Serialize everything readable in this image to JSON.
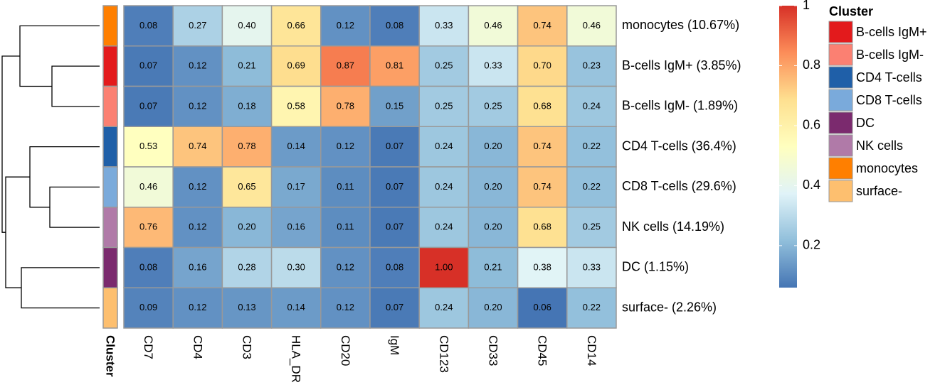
{
  "chart_data": {
    "type": "heatmap",
    "rows": [
      "monocytes (10.67%)",
      "B-cells IgM+ (3.85%)",
      "B-cells IgM- (1.89%)",
      "CD4 T-cells (36.4%)",
      "CD8 T-cells (29.6%)",
      "NK cells (14.19%)",
      "DC (1.15%)",
      "surface- (2.26%)"
    ],
    "columns": [
      "CD7",
      "CD4",
      "CD3",
      "HLA_DR",
      "CD20",
      "IgM",
      "CD123",
      "CD33",
      "CD45",
      "CD14"
    ],
    "values": [
      [
        0.08,
        0.27,
        0.4,
        0.66,
        0.12,
        0.08,
        0.33,
        0.46,
        0.74,
        0.46
      ],
      [
        0.07,
        0.12,
        0.21,
        0.69,
        0.87,
        0.81,
        0.25,
        0.33,
        0.7,
        0.23
      ],
      [
        0.07,
        0.12,
        0.18,
        0.58,
        0.78,
        0.15,
        0.25,
        0.25,
        0.68,
        0.24
      ],
      [
        0.53,
        0.74,
        0.78,
        0.14,
        0.12,
        0.07,
        0.24,
        0.2,
        0.74,
        0.22
      ],
      [
        0.46,
        0.12,
        0.65,
        0.17,
        0.11,
        0.07,
        0.24,
        0.2,
        0.74,
        0.22
      ],
      [
        0.76,
        0.12,
        0.2,
        0.16,
        0.11,
        0.07,
        0.24,
        0.2,
        0.68,
        0.25
      ],
      [
        0.08,
        0.16,
        0.28,
        0.3,
        0.12,
        0.08,
        1.0,
        0.21,
        0.38,
        0.33
      ],
      [
        0.09,
        0.12,
        0.13,
        0.14,
        0.12,
        0.07,
        0.24,
        0.2,
        0.06,
        0.22
      ]
    ],
    "value_labels": [
      [
        "0.08",
        "0.27",
        "0.40",
        "0.66",
        "0.12",
        "0.08",
        "0.33",
        "0.46",
        "0.74",
        "0.46"
      ],
      [
        "0.07",
        "0.12",
        "0.21",
        "0.69",
        "0.87",
        "0.81",
        "0.25",
        "0.33",
        "0.70",
        "0.23"
      ],
      [
        "0.07",
        "0.12",
        "0.18",
        "0.58",
        "0.78",
        "0.15",
        "0.25",
        "0.25",
        "0.68",
        "0.24"
      ],
      [
        "0.53",
        "0.74",
        "0.78",
        "0.14",
        "0.12",
        "0.07",
        "0.24",
        "0.20",
        "0.74",
        "0.22"
      ],
      [
        "0.46",
        "0.12",
        "0.65",
        "0.17",
        "0.11",
        "0.07",
        "0.24",
        "0.20",
        "0.74",
        "0.22"
      ],
      [
        "0.76",
        "0.12",
        "0.20",
        "0.16",
        "0.11",
        "0.07",
        "0.24",
        "0.20",
        "0.68",
        "0.25"
      ],
      [
        "0.08",
        "0.16",
        "0.28",
        "0.30",
        "0.12",
        "0.08",
        "1.00",
        "0.21",
        "0.38",
        "0.33"
      ],
      [
        "0.09",
        "0.12",
        "0.13",
        "0.14",
        "0.12",
        "0.07",
        "0.24",
        "0.20",
        "0.06",
        "0.22"
      ]
    ],
    "colorscale": [
      "#4575b4",
      "#91bfdb",
      "#e0f3f8",
      "#ffffbf",
      "#fee090",
      "#fc8d59",
      "#d73027"
    ],
    "clim": [
      0.06,
      1
    ],
    "colorbar_ticks": [
      0.2,
      0.4,
      0.6,
      0.8,
      1
    ],
    "annotation_label": "Cluster",
    "row_colors": [
      "#ff7f00",
      "#e31a1c",
      "#fb8072",
      "#1f5fa8",
      "#7aaadb",
      "#b07aa8",
      "#7b2a6e",
      "#fdbf6f"
    ],
    "legend_title": "Cluster",
    "legend": [
      {
        "name": "B-cells IgM+",
        "color": "#e31a1c"
      },
      {
        "name": "B-cells IgM-",
        "color": "#fb8072"
      },
      {
        "name": "CD4 T-cells",
        "color": "#1f5fa8"
      },
      {
        "name": "CD8 T-cells",
        "color": "#7aaadb"
      },
      {
        "name": "DC",
        "color": "#7b2a6e"
      },
      {
        "name": "NK cells",
        "color": "#b07aa8"
      },
      {
        "name": "monocytes",
        "color": "#ff7f00"
      },
      {
        "name": "surface-",
        "color": "#fdbf6f"
      }
    ]
  }
}
